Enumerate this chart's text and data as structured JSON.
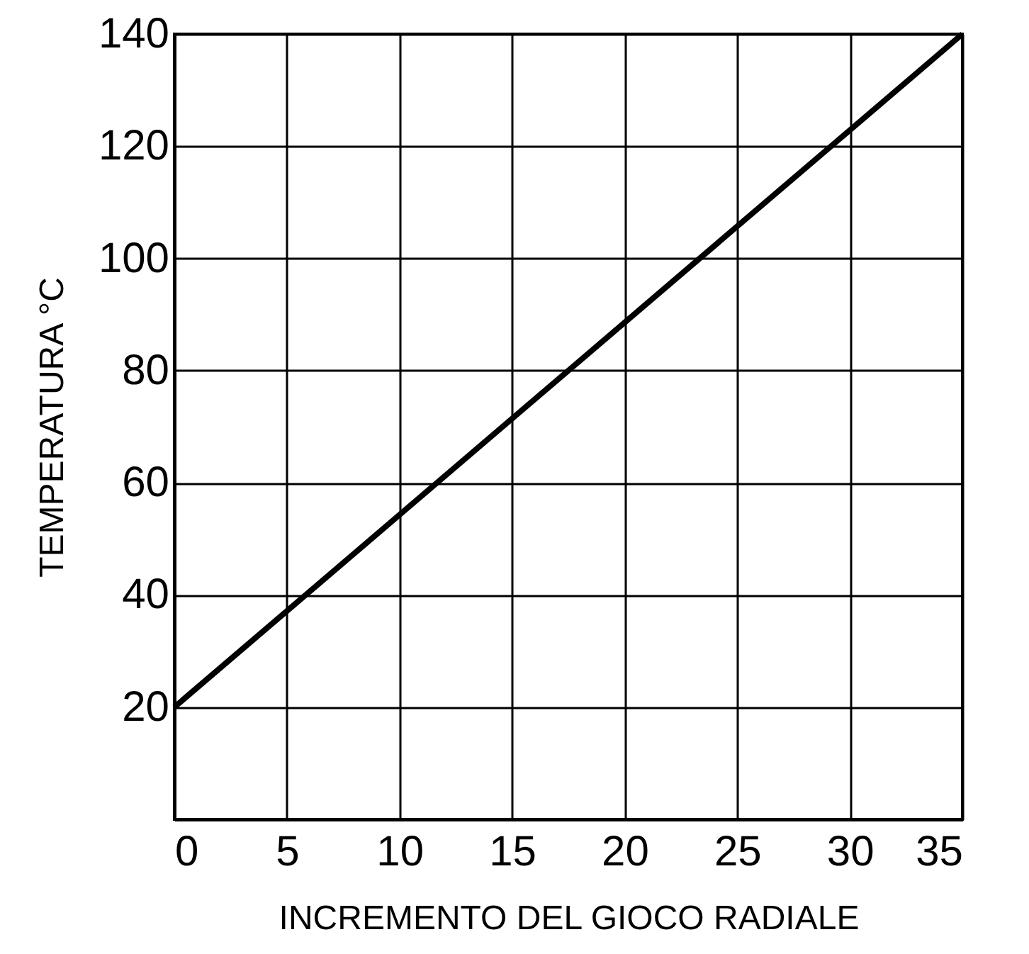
{
  "chart_data": {
    "type": "line",
    "xlabel": "INCREMENTO DEL GIOCO RADIALE",
    "ylabel": "TEMPERATURA °C",
    "x": [
      0,
      35
    ],
    "series": [
      {
        "color": "#000000",
        "values": [
          20,
          140
        ]
      }
    ],
    "xlim": [
      0,
      35
    ],
    "xticks": [
      0,
      5,
      10,
      15,
      20,
      25,
      30,
      35
    ],
    "ylim": [
      0,
      140
    ],
    "yticks": [
      {
        "value": 0,
        "label": null
      },
      20,
      40,
      60,
      80,
      100,
      120,
      140
    ],
    "grid": true,
    "marker": "none",
    "line_style": "solid"
  }
}
